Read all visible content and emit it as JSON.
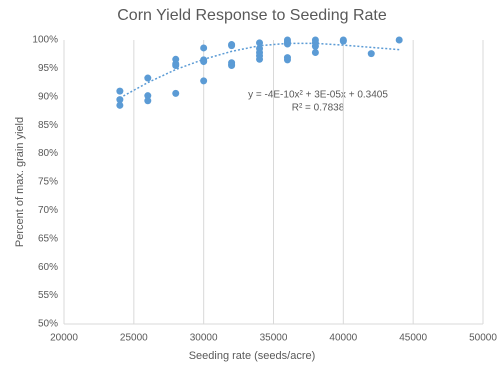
{
  "chart_data": {
    "type": "scatter",
    "title": "Corn Yield Response to Seeding Rate",
    "x_label": "Seeding rate (seeds/acre)",
    "y_label": "Percent of max. grain yield",
    "annotations": [
      "y = -4E-10x² + 3E-05x + 0.3405",
      "R² = 0.7838"
    ],
    "points": {
      "color": "#5b9bd5",
      "x": [
        24000,
        24000,
        24000,
        26000,
        26000,
        26000,
        28000,
        28000,
        28000,
        28000,
        30000,
        30000,
        30000,
        30000,
        32000,
        32000,
        32000,
        32000,
        32000,
        34000,
        34000,
        34000,
        34000,
        34000,
        36000,
        36000,
        36000,
        36000,
        36000,
        38000,
        38000,
        38000,
        38000,
        40000,
        40000,
        42000,
        44000
      ],
      "values": [
        91.0,
        89.5,
        88.5,
        93.3,
        90.2,
        89.3,
        96.6,
        95.8,
        95.5,
        90.6,
        98.6,
        96.5,
        96.2,
        92.8,
        99.2,
        99.0,
        96.0,
        95.7,
        95.5,
        99.5,
        98.5,
        97.8,
        97.2,
        96.6,
        100,
        99.6,
        99.3,
        96.9,
        96.5,
        100,
        99.5,
        98.9,
        97.8,
        100,
        99.8,
        97.6,
        100
      ]
    },
    "trendline": {
      "color": "#5b9bd5",
      "x": [
        24000,
        26000,
        28000,
        30000,
        32000,
        34000,
        36000,
        38000,
        40000,
        42000,
        44000
      ],
      "values": [
        89.8,
        92.5,
        94.8,
        96.6,
        98.0,
        99.0,
        99.4,
        99.4,
        99.1,
        98.7,
        98.3
      ]
    },
    "xlim": [
      20000,
      50000
    ],
    "xticks": [
      20000,
      25000,
      30000,
      35000,
      40000,
      45000,
      50000
    ],
    "ylim": [
      50,
      100
    ],
    "yticks": [
      {
        "value": 50,
        "label": "50%"
      },
      {
        "value": 55,
        "label": "55%"
      },
      {
        "value": 60,
        "label": "60%"
      },
      {
        "value": 65,
        "label": "65%"
      },
      {
        "value": 70,
        "label": "70%"
      },
      {
        "value": 75,
        "label": "75%"
      },
      {
        "value": 80,
        "label": "80%"
      },
      {
        "value": 85,
        "label": "85%"
      },
      {
        "value": 90,
        "label": "90%"
      },
      {
        "value": 95,
        "label": "95%"
      },
      {
        "value": 100,
        "label": "100%"
      }
    ],
    "xgrid": true
  }
}
